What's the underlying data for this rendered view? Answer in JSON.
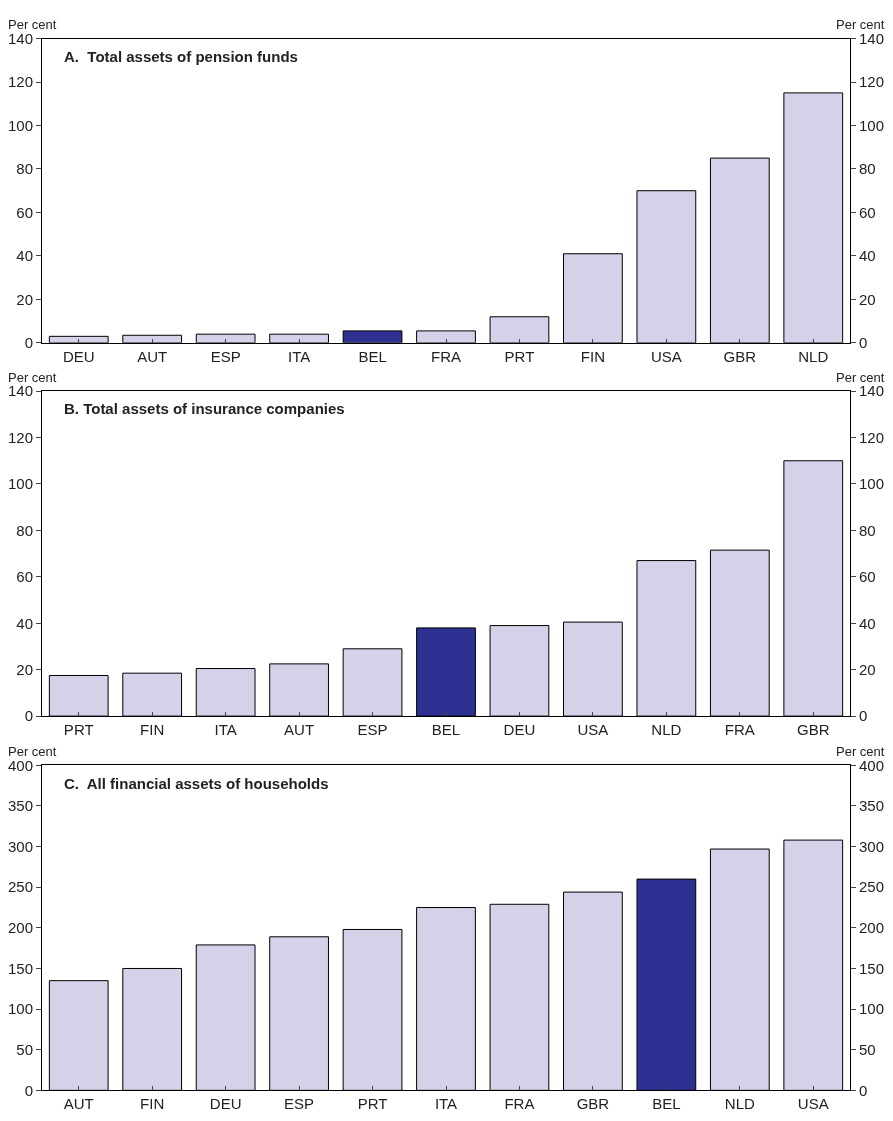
{
  "chart_data": [
    {
      "type": "bar",
      "title": "A.  Total assets of pension funds",
      "ylabel": "Per cent",
      "y2label": "Per cent",
      "categories": [
        "DEU",
        "AUT",
        "ESP",
        "ITA",
        "BEL",
        "FRA",
        "PRT",
        "FIN",
        "USA",
        "GBR",
        "NLD"
      ],
      "values": [
        3,
        3.5,
        4,
        4,
        5.5,
        5.5,
        12,
        41,
        70,
        85,
        115
      ],
      "colors": [
        "#d3d2e8",
        "#d3d2e8",
        "#d3d2e8",
        "#d3d2e8",
        "#2e3192",
        "#d3d2e8",
        "#d3d2e8",
        "#d3d2e8",
        "#d3d2e8",
        "#d3d2e8",
        "#d3d2e8"
      ],
      "ylim": [
        0,
        140
      ],
      "yticks": [
        0,
        20,
        40,
        60,
        80,
        100,
        120,
        140
      ],
      "y2lim": [
        0,
        140
      ],
      "y2ticks": [
        0,
        20,
        40,
        60,
        80,
        100,
        120,
        140
      ]
    },
    {
      "type": "bar",
      "title": "B. Total assets of insurance companies",
      "ylabel": "Per cent",
      "y2label": "Per cent",
      "categories": [
        "PRT",
        "FIN",
        "ITA",
        "AUT",
        "ESP",
        "BEL",
        "DEU",
        "USA",
        "NLD",
        "FRA",
        "GBR"
      ],
      "values": [
        17.5,
        18.5,
        20.5,
        22.5,
        29,
        38,
        39,
        40.5,
        67,
        71.5,
        110
      ],
      "colors": [
        "#d3d2e8",
        "#d3d2e8",
        "#d3d2e8",
        "#d3d2e8",
        "#d3d2e8",
        "#2e3192",
        "#d3d2e8",
        "#d3d2e8",
        "#d3d2e8",
        "#d3d2e8",
        "#d3d2e8"
      ],
      "ylim": [
        0,
        140
      ],
      "yticks": [
        0,
        20,
        40,
        60,
        80,
        100,
        120,
        140
      ],
      "y2lim": [
        0,
        140
      ],
      "y2ticks": [
        0,
        20,
        40,
        60,
        80,
        100,
        120,
        140
      ]
    },
    {
      "type": "bar",
      "title": "C.  All financial assets of households",
      "ylabel": "Per cent",
      "y2label": "Per cent",
      "categories": [
        "AUT",
        "FIN",
        "DEU",
        "ESP",
        "PRT",
        "ITA",
        "FRA",
        "GBR",
        "BEL",
        "NLD",
        "USA"
      ],
      "values": [
        135,
        150,
        179,
        189,
        198,
        225,
        229,
        244,
        260,
        297,
        308
      ],
      "colors": [
        "#d3d2e8",
        "#d3d2e8",
        "#d3d2e8",
        "#d3d2e8",
        "#d3d2e8",
        "#d3d2e8",
        "#d3d2e8",
        "#d3d2e8",
        "#2e3192",
        "#d3d2e8",
        "#d3d2e8"
      ],
      "ylim": [
        0,
        400
      ],
      "yticks": [
        0,
        50,
        100,
        150,
        200,
        250,
        300,
        350,
        400
      ],
      "y2lim": [
        0,
        400
      ],
      "y2ticks": [
        0,
        50,
        100,
        150,
        200,
        250,
        300,
        350,
        400
      ]
    }
  ]
}
